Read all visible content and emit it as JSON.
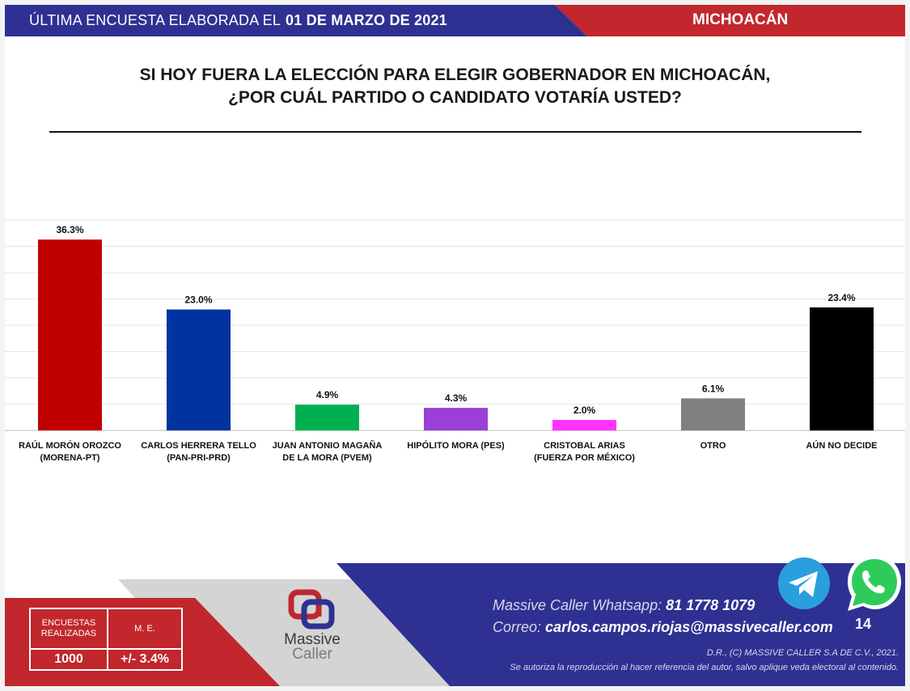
{
  "header": {
    "survey_prefix": "ÚLTIMA ENCUESTA ELABORADA EL",
    "survey_date": "01 DE MARZO DE 2021",
    "state": "MICHOACÁN"
  },
  "question": {
    "line1": "SI HOY FUERA LA ELECCIÓN PARA ELEGIR GOBERNADOR EN MICHOACÁN,",
    "line2": "¿POR CUÁL PARTIDO O CANDIDATO VOTARÍA USTED?"
  },
  "chart_data": {
    "type": "bar",
    "categories": [
      [
        "RAÚL MORÓN OROZCO",
        "(MORENA-PT)"
      ],
      [
        "CARLOS HERRERA TELLO",
        "(PAN-PRI-PRD)"
      ],
      [
        "JUAN ANTONIO MAGAÑA",
        "DE LA MORA (PVEM)"
      ],
      [
        "HIPÓLITO MORA (PES)"
      ],
      [
        "CRISTOBAL ARIAS",
        "(FUERZA POR MÉXICO)"
      ],
      [
        "OTRO"
      ],
      [
        "AÚN NO DECIDE"
      ]
    ],
    "values": [
      36.3,
      23.0,
      4.9,
      4.3,
      2.0,
      6.1,
      23.4
    ],
    "value_labels": [
      "36.3%",
      "23.0%",
      "4.9%",
      "4.3%",
      "2.0%",
      "6.1%",
      "23.4%"
    ],
    "colors": [
      "#c00000",
      "#0032a0",
      "#00b050",
      "#9b3fd9",
      "#ff33ff",
      "#808080",
      "#000000"
    ],
    "ylim": [
      0,
      40
    ],
    "grid": true
  },
  "stats": {
    "surveys_label_1": "ENCUESTAS",
    "surveys_label_2": "REALIZADAS",
    "surveys_value": "1000",
    "margin_label": "M. E.",
    "margin_value": "+/- 3.4%"
  },
  "logo": {
    "name": "Massive",
    "sub": "Caller"
  },
  "contact": {
    "whatsapp_label": "Massive Caller Whatsapp:",
    "whatsapp_number": "81 1778 1079",
    "email_label": "Correo:",
    "email": "carlos.campos.riojas@massivecaller.com"
  },
  "page_number": "14",
  "legal": {
    "line1": "D.R., (C) MASSIVE CALLER S.A DE C.V., 2021.",
    "line2": "Se autoriza la reproducción al hacer referencia del autor, salvo aplique veda electoral al contenido."
  },
  "icons": {
    "telegram": "telegram-icon",
    "whatsapp": "whatsapp-icon"
  },
  "brand_colors": {
    "navy": "#2e3192",
    "red": "#c1272d"
  }
}
